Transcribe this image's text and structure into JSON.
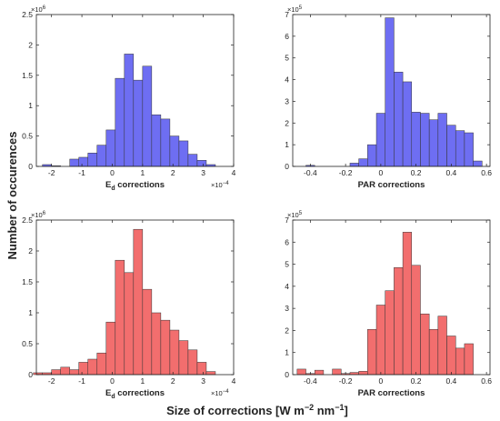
{
  "figure": {
    "ylabel": "Number of occurences",
    "xlabel_main": "Size of corrections [W m",
    "xlabel_exp1": "−2",
    "xlabel_mid": " nm",
    "xlabel_exp2": "−1",
    "xlabel_end": "]"
  },
  "colors": {
    "blue": "#6e6ef2",
    "red": "#f26e6e",
    "edge": "#333333"
  },
  "chart_data": [
    {
      "type": "bar",
      "panel": "top-left",
      "series_color": "blue",
      "xlabel_main": "E",
      "xlabel_sub": "d",
      "xlabel_rest": " corrections",
      "x_exponent_label": "×10",
      "x_exponent_power": "−4",
      "y_exponent_label": "×10",
      "y_exponent_power": "6",
      "xlim": [
        -2.5,
        4
      ],
      "ylim": [
        0,
        2.5
      ],
      "xticks": [
        -2,
        -1,
        0,
        1,
        2,
        3,
        4
      ],
      "xtick_labels": [
        "-2",
        "-1",
        "0",
        "1",
        "2",
        "3",
        "4"
      ],
      "yticks": [
        0,
        0.5,
        1,
        1.5,
        2,
        2.5
      ],
      "ytick_labels": [
        "0",
        "0.5",
        "1",
        "1.5",
        "2",
        "2.5"
      ],
      "bin_width": 0.3,
      "bin_starts": [
        -2.3,
        -2.0,
        -1.7,
        -1.4,
        -1.1,
        -0.8,
        -0.5,
        -0.2,
        0.1,
        0.4,
        0.7,
        1.0,
        1.3,
        1.6,
        1.9,
        2.2,
        2.5,
        2.8,
        3.1,
        3.4
      ],
      "values": [
        0.03,
        0.01,
        0.0,
        0.12,
        0.15,
        0.22,
        0.35,
        0.6,
        1.45,
        1.85,
        1.42,
        1.65,
        0.85,
        0.78,
        0.5,
        0.42,
        0.2,
        0.1,
        0.03,
        0.0
      ]
    },
    {
      "type": "bar",
      "panel": "top-right",
      "series_color": "blue",
      "xlabel_main": "PAR corrections",
      "xlabel_sub": "",
      "xlabel_rest": "",
      "x_exponent_label": "",
      "x_exponent_power": "",
      "y_exponent_label": "×10",
      "y_exponent_power": "5",
      "xlim": [
        -0.5,
        0.62
      ],
      "ylim": [
        0,
        7
      ],
      "xticks": [
        -0.4,
        -0.2,
        0,
        0.2,
        0.4,
        0.6
      ],
      "xtick_labels": [
        "-0.4",
        "-0.2",
        "0",
        "0.2",
        "0.4",
        "0.6"
      ],
      "yticks": [
        0,
        1,
        2,
        3,
        4,
        5,
        6,
        7
      ],
      "ytick_labels": [
        "0",
        "1",
        "2",
        "3",
        "4",
        "5",
        "6",
        "7"
      ],
      "bin_width": 0.05,
      "bin_starts": [
        -0.475,
        -0.425,
        -0.375,
        -0.325,
        -0.275,
        -0.225,
        -0.175,
        -0.125,
        -0.075,
        -0.025,
        0.025,
        0.075,
        0.125,
        0.175,
        0.225,
        0.275,
        0.325,
        0.375,
        0.425,
        0.475,
        0.525
      ],
      "values": [
        0.0,
        0.05,
        0.0,
        0.0,
        0.0,
        0.0,
        0.15,
        0.35,
        1.0,
        2.45,
        6.85,
        4.35,
        3.9,
        2.5,
        2.45,
        2.15,
        2.45,
        1.9,
        1.65,
        1.55,
        0.25
      ]
    },
    {
      "type": "bar",
      "panel": "bottom-left",
      "series_color": "red",
      "xlabel_main": "E",
      "xlabel_sub": "d",
      "xlabel_rest": " corrections",
      "x_exponent_label": "×10",
      "x_exponent_power": "−4",
      "y_exponent_label": "×10",
      "y_exponent_power": "6",
      "xlim": [
        -2.5,
        4
      ],
      "ylim": [
        0,
        2.5
      ],
      "xticks": [
        -2,
        -1,
        0,
        1,
        2,
        3,
        4
      ],
      "xtick_labels": [
        "-2",
        "-1",
        "0",
        "1",
        "2",
        "3",
        "4"
      ],
      "yticks": [
        0,
        0.5,
        1,
        1.5,
        2,
        2.5
      ],
      "ytick_labels": [
        "0",
        "0.5",
        "1",
        "1.5",
        "2",
        "2.5"
      ],
      "bin_width": 0.3,
      "bin_starts": [
        -2.6,
        -2.3,
        -2.0,
        -1.7,
        -1.4,
        -1.1,
        -0.8,
        -0.5,
        -0.2,
        0.1,
        0.4,
        0.7,
        1.0,
        1.3,
        1.6,
        1.9,
        2.2,
        2.5,
        2.8,
        3.1,
        3.4
      ],
      "values": [
        0.03,
        0.03,
        0.08,
        0.12,
        0.08,
        0.2,
        0.25,
        0.35,
        0.85,
        1.85,
        1.65,
        2.35,
        1.38,
        1.0,
        0.88,
        0.72,
        0.55,
        0.4,
        0.2,
        0.05,
        0.0
      ]
    },
    {
      "type": "bar",
      "panel": "bottom-right",
      "series_color": "red",
      "xlabel_main": "PAR corrections",
      "xlabel_sub": "",
      "xlabel_rest": "",
      "x_exponent_label": "",
      "x_exponent_power": "",
      "y_exponent_label": "×10",
      "y_exponent_power": "5",
      "xlim": [
        -0.5,
        0.62
      ],
      "ylim": [
        0,
        7
      ],
      "xticks": [
        -0.4,
        -0.2,
        0,
        0.2,
        0.4,
        0.6
      ],
      "xtick_labels": [
        "-0.4",
        "-0.2",
        "0",
        "0.2",
        "0.4",
        "0.6"
      ],
      "yticks": [
        0,
        1,
        2,
        3,
        4,
        5,
        6,
        7
      ],
      "ytick_labels": [
        "0",
        "1",
        "2",
        "3",
        "4",
        "5",
        "6",
        "7"
      ],
      "bin_width": 0.05,
      "bin_starts": [
        -0.475,
        -0.425,
        -0.375,
        -0.325,
        -0.275,
        -0.225,
        -0.175,
        -0.125,
        -0.075,
        -0.025,
        0.025,
        0.075,
        0.125,
        0.175,
        0.225,
        0.275,
        0.325,
        0.375,
        0.425,
        0.475
      ],
      "values": [
        0.25,
        0.05,
        0.2,
        0.0,
        0.25,
        0.05,
        0.1,
        0.15,
        2.05,
        3.15,
        3.8,
        4.85,
        6.45,
        4.95,
        2.75,
        2.05,
        2.65,
        1.75,
        1.2,
        1.4
      ]
    }
  ]
}
